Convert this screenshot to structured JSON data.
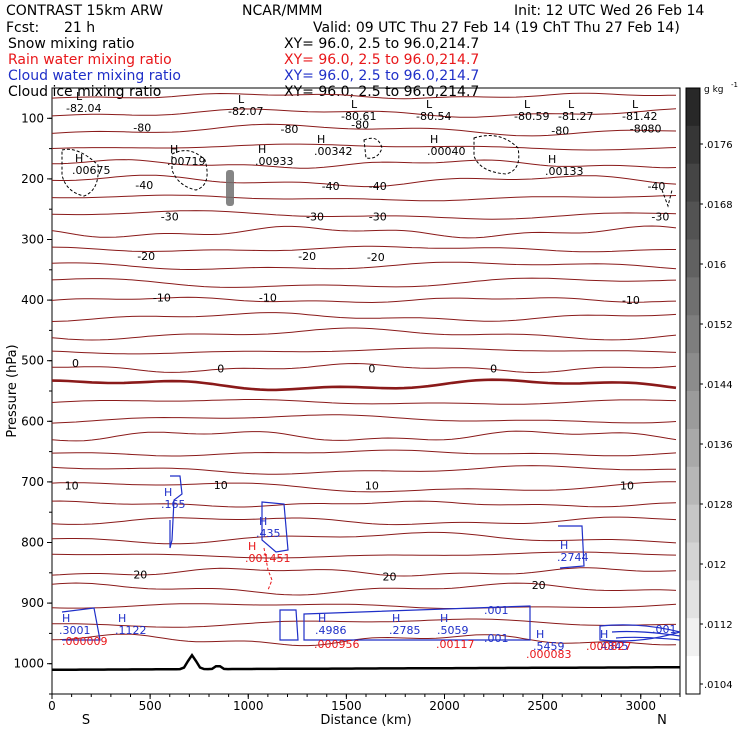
{
  "header": {
    "model": "CONTRAST 15km ARW",
    "center": "NCAR/MMM",
    "init": "Init: 12 UTC Wed 26 Feb 14",
    "fcst_label": "Fcst:",
    "fcst_value": "21 h",
    "valid": "Valid: 09 UTC Thu 27 Feb 14 (19 ChT Thu 27 Feb 14)",
    "fields": [
      {
        "label": "Snow mixing ratio",
        "xy": "XY=  96.0,  2.5 to  96.0,214.7",
        "color": "#000000"
      },
      {
        "label": "Rain water mixing ratio",
        "xy": "XY=  96.0,  2.5 to  96.0,214.7",
        "color": "#e8171a"
      },
      {
        "label": "Cloud water mixing ratio",
        "xy": "XY=  96.0,  2.5 to  96.0,214.7",
        "color": "#1f2fc8"
      },
      {
        "label": "Cloud ice mixing ratio",
        "xy": "XY=  96.0,  2.5 to  96.0,214.7",
        "color": "#000000"
      }
    ]
  },
  "chart_data": {
    "type": "contour",
    "xlabel": "Distance (km)",
    "ylabel": "Pressure (hPa)",
    "x_ticks": [
      0,
      500,
      1000,
      1500,
      2000,
      2500,
      3000
    ],
    "y_ticks": [
      100,
      200,
      300,
      400,
      500,
      600,
      700,
      800,
      900,
      1000
    ],
    "xlim": [
      0,
      3200
    ],
    "ylim": [
      1050,
      50
    ],
    "x_end_labels": {
      "left": "S",
      "right": "N"
    },
    "colorbar": {
      "unit": "g kg",
      "unit_exp": "-1",
      "ticks": [
        ".0176",
        ".0168",
        ".016",
        ".0152",
        ".0144",
        ".0136",
        ".0128",
        ".012",
        ".0112",
        ".0104"
      ],
      "range": [
        0.01,
        0.018
      ]
    },
    "temperature_contours": [
      {
        "value": -80,
        "labels": [
          [
            460,
            115
          ],
          [
            1210,
            118
          ],
          [
            1570,
            110
          ],
          [
            2590,
            120
          ],
          [
            2990,
            117
          ],
          [
            3060,
            117
          ]
        ]
      },
      {
        "value": -40,
        "labels": [
          [
            470,
            210
          ],
          [
            1420,
            212
          ],
          [
            1660,
            212
          ],
          [
            3080,
            212
          ]
        ]
      },
      {
        "value": -30,
        "labels": [
          [
            600,
            262
          ],
          [
            1340,
            262
          ],
          [
            1660,
            262
          ],
          [
            3100,
            262
          ]
        ]
      },
      {
        "value": -20,
        "labels": [
          [
            480,
            327
          ],
          [
            1300,
            327
          ],
          [
            1650,
            329
          ]
        ]
      },
      {
        "value": -10,
        "labels": [
          [
            560,
            396
          ],
          [
            1100,
            396
          ],
          [
            2950,
            400
          ]
        ]
      },
      {
        "value": 0,
        "labels": [
          [
            120,
            504
          ],
          [
            860,
            513
          ],
          [
            1630,
            513
          ],
          [
            2250,
            513
          ]
        ]
      },
      {
        "value": 10,
        "labels": [
          [
            100,
            706
          ],
          [
            860,
            705
          ],
          [
            1630,
            706
          ],
          [
            2930,
            706
          ]
        ]
      },
      {
        "value": 20,
        "labels": [
          [
            450,
            853
          ],
          [
            1720,
            856
          ],
          [
            2480,
            870
          ]
        ]
      }
    ],
    "label_sets": {
      "high_ice": [
        "-82.04",
        "-82.07",
        "-80.61",
        "-80.54",
        "-80.59",
        "-81.27",
        "-81.42"
      ],
      "upper_h": [
        ".00675",
        ".00719",
        ".00933",
        ".00342",
        ".00040",
        ".00133"
      ],
      "cloud_water_high": [
        ".165",
        ".435",
        ".2744"
      ],
      "rain_mid": [
        ".001451"
      ],
      "low_cloud": [
        ".3001",
        ".1122",
        ".4986",
        ".2785",
        ".5059",
        ".5459",
        ".4845",
        ".001",
        ".001",
        ".001"
      ],
      "low_rain": [
        ".000009",
        ".000956",
        ".00117",
        ".000083",
        ".000827"
      ]
    }
  }
}
